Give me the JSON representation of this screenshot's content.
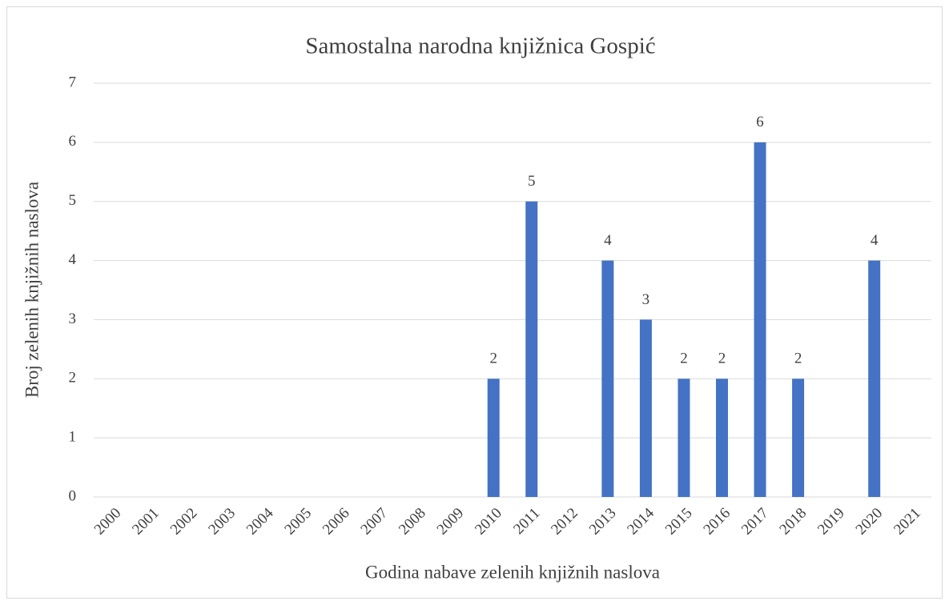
{
  "chart_data": {
    "type": "bar",
    "title": "Samostalna narodna knjižnica Gospić",
    "x_label": "Godina nabave zelenih knjižnih naslova",
    "y_label": "Broj zelenih knjižnih naslova",
    "categories": [
      "2000",
      "2001",
      "2002",
      "2003",
      "2004",
      "2005",
      "2006",
      "2007",
      "2008",
      "2009",
      "2010",
      "2011",
      "2012",
      "2013",
      "2014",
      "2015",
      "2016",
      "2017",
      "2018",
      "2019",
      "2020",
      "2021"
    ],
    "values": [
      null,
      null,
      null,
      null,
      null,
      null,
      null,
      null,
      null,
      null,
      2,
      5,
      null,
      4,
      3,
      2,
      2,
      6,
      2,
      null,
      4,
      null
    ],
    "color": "#4472c4",
    "ylim": [
      0,
      7
    ],
    "yticks": [
      0,
      1,
      2,
      3,
      4,
      5,
      6,
      7
    ],
    "grid": true
  }
}
